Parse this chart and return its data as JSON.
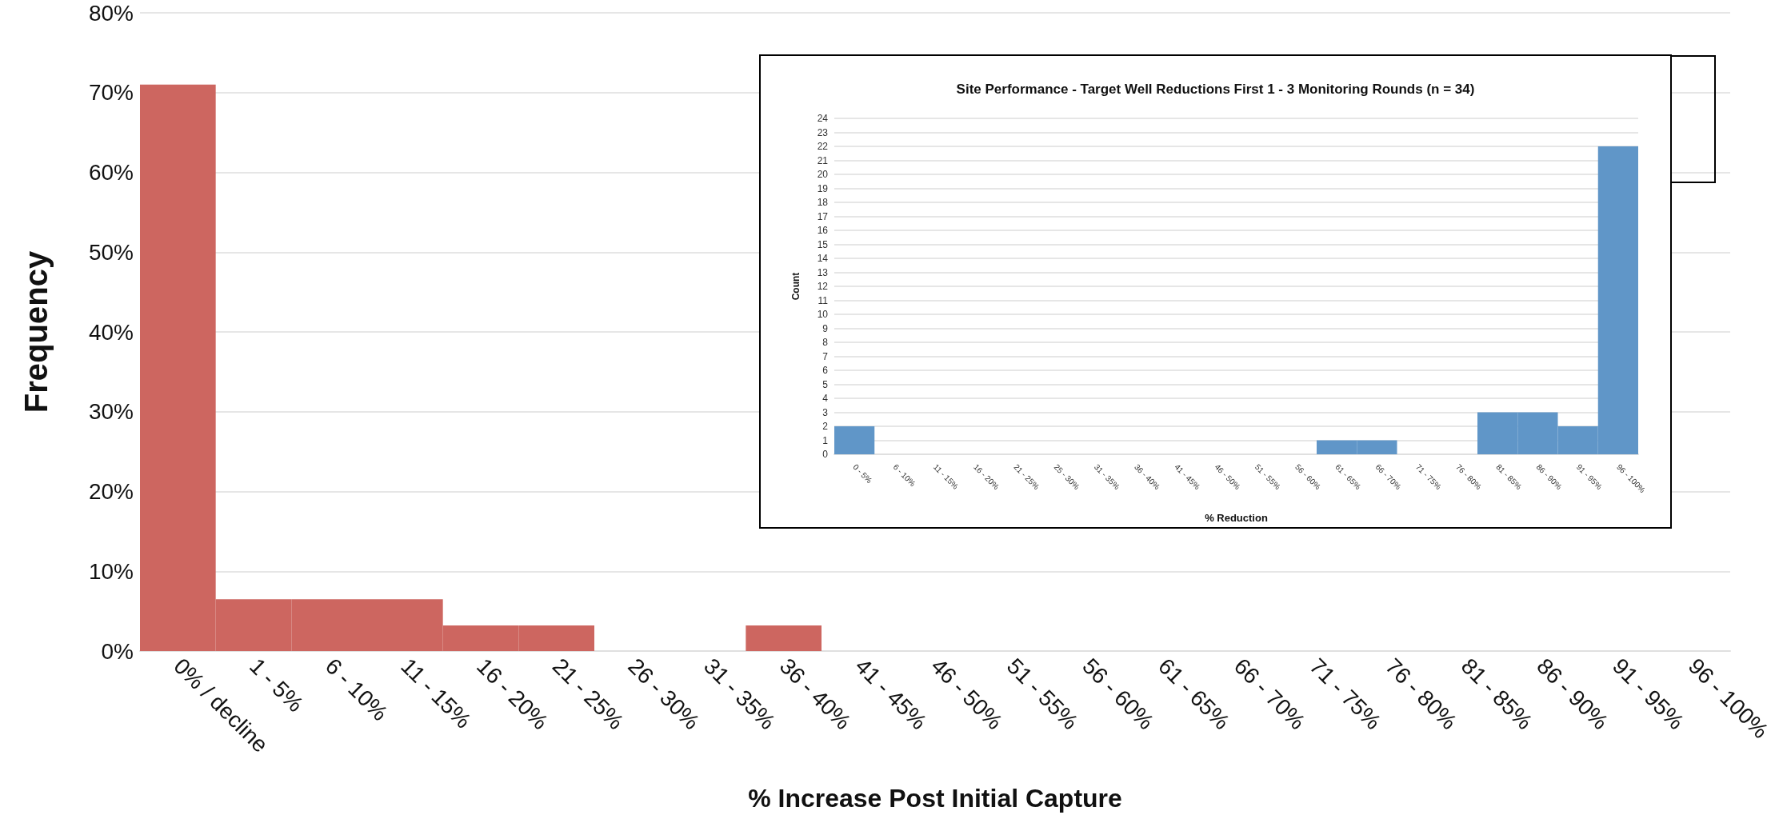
{
  "chart_data": [
    {
      "type": "bar",
      "xlabel": "% Increase Post Initial Capture",
      "ylabel": "Frequency",
      "categories": [
        "0% / decline",
        "1 - 5%",
        "6 - 10%",
        "11 - 15%",
        "16 - 20%",
        "21 - 25%",
        "26 - 30%",
        "31 - 35%",
        "36 - 40%",
        "41 - 45%",
        "46 - 50%",
        "51 - 55%",
        "56 - 60%",
        "61 - 65%",
        "66 - 70%",
        "71 - 75%",
        "76 - 80%",
        "81 - 85%",
        "86 - 90%",
        "91 - 95%",
        "96 - 100%"
      ],
      "values": [
        71,
        6.5,
        6.5,
        6.5,
        3.2,
        3.2,
        0,
        0,
        3.2,
        0,
        0,
        0,
        0,
        0,
        0,
        0,
        0,
        0,
        0,
        0,
        0
      ],
      "color": "#cd6660",
      "ylim": [
        0,
        80
      ],
      "yticks": [
        {
          "value": 0,
          "label": "0%"
        },
        {
          "value": 10,
          "label": "10%"
        },
        {
          "value": 20,
          "label": "20%"
        },
        {
          "value": 30,
          "label": "30%"
        },
        {
          "value": 40,
          "label": "40%"
        },
        {
          "value": 50,
          "label": "50%"
        },
        {
          "value": 60,
          "label": "60%"
        },
        {
          "value": 70,
          "label": "70%"
        },
        {
          "value": 80,
          "label": "80%"
        }
      ],
      "grid": true
    },
    {
      "type": "bar",
      "title": "Site Performance - Target Well Reductions First 1 - 3 Monitoring Rounds (n = 34)",
      "xlabel": "% Reduction",
      "ylabel": "Count",
      "categories": [
        "0 - 5%",
        "6 - 10%",
        "11 - 15%",
        "16 - 20%",
        "21 - 25%",
        "25 - 30%",
        "31 - 35%",
        "36 - 40%",
        "41 - 45%",
        "46 - 50%",
        "51 - 55%",
        "56 - 60%",
        "61 - 65%",
        "66 - 70%",
        "71 - 75%",
        "76 - 80%",
        "81 - 85%",
        "86 - 90%",
        "91 - 95%",
        "96 - 100%"
      ],
      "values": [
        2,
        0,
        0,
        0,
        0,
        0,
        0,
        0,
        0,
        0,
        0,
        0,
        1,
        1,
        0,
        0,
        3,
        3,
        2,
        22
      ],
      "color": "#6096c8",
      "ylim": [
        0,
        24
      ],
      "yticks": [
        0,
        1,
        2,
        3,
        4,
        5,
        6,
        7,
        8,
        9,
        10,
        11,
        12,
        13,
        14,
        15,
        16,
        17,
        18,
        19,
        20,
        21,
        22,
        23,
        24
      ],
      "grid": true
    }
  ]
}
